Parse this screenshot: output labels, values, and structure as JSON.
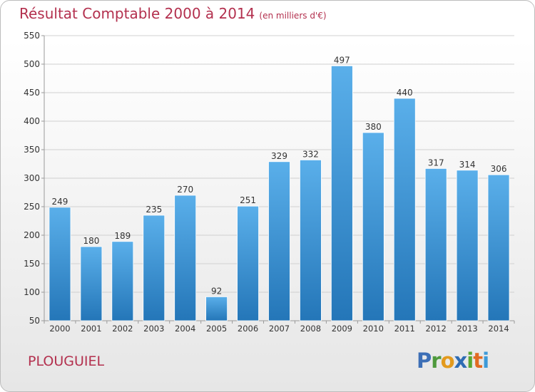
{
  "title": "Résultat Comptable 2000 à 2014",
  "subtitle": "(en milliers d'€)",
  "town": "PLOUGUIEL",
  "logo": {
    "letters": [
      "P",
      "r",
      "o",
      "x",
      "i",
      "t",
      "i"
    ]
  },
  "colors": {
    "bar_top": "#5aafea",
    "bar_bottom": "#2476b8",
    "title": "#b3304e"
  },
  "chart_data": {
    "type": "bar",
    "title": "Résultat Comptable 2000 à 2014",
    "subtitle": "(en milliers d'€)",
    "categories": [
      "2000",
      "2001",
      "2002",
      "2003",
      "2004",
      "2005",
      "2006",
      "2007",
      "2008",
      "2009",
      "2010",
      "2011",
      "2012",
      "2013",
      "2014"
    ],
    "values": [
      249,
      180,
      189,
      235,
      270,
      92,
      251,
      329,
      332,
      497,
      380,
      440,
      317,
      314,
      306
    ],
    "ylim": [
      50,
      550
    ],
    "yticks": [
      50,
      100,
      150,
      200,
      250,
      300,
      350,
      400,
      450,
      500,
      550
    ],
    "grid": true,
    "data_labels": true
  }
}
